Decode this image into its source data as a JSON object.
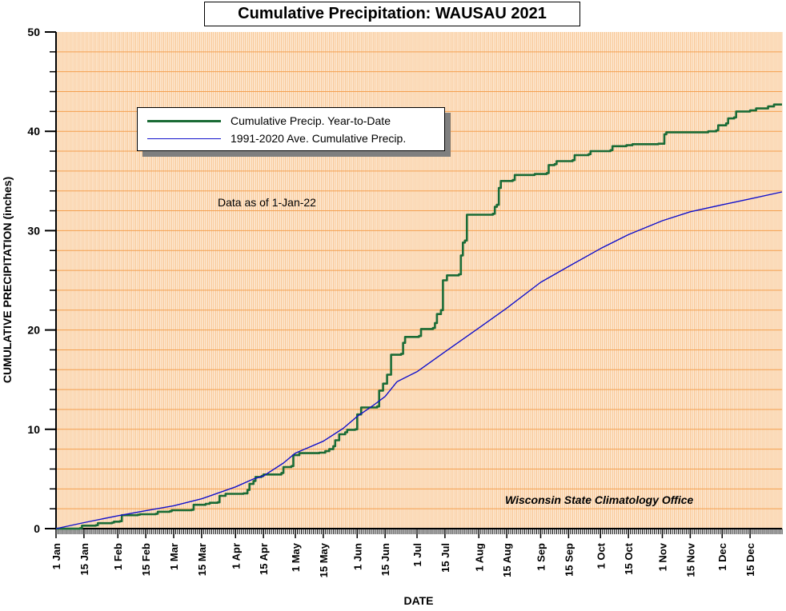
{
  "chart_data": {
    "type": "line",
    "title": "Cumulative Precipitation: WAUSAU 2021",
    "xlabel": "DATE",
    "ylabel": "CUMULATIVE PRECIPITATION (inches)",
    "ylim": [
      0,
      50
    ],
    "xlim_days": [
      1,
      365
    ],
    "y_ticks": [
      0,
      10,
      20,
      30,
      40,
      50
    ],
    "y_minor_step": 2,
    "grid": true,
    "x_ticks": [
      {
        "label": "1 Jan",
        "day": 1
      },
      {
        "label": "15 Jan",
        "day": 15
      },
      {
        "label": "1 Feb",
        "day": 32
      },
      {
        "label": "15 Feb",
        "day": 46
      },
      {
        "label": "1 Mar",
        "day": 60
      },
      {
        "label": "15 Mar",
        "day": 74
      },
      {
        "label": "1 Apr",
        "day": 91
      },
      {
        "label": "15 Apr",
        "day": 105
      },
      {
        "label": "1 May",
        "day": 121
      },
      {
        "label": "15 May",
        "day": 135
      },
      {
        "label": "1 Jun",
        "day": 152
      },
      {
        "label": "15 Jun",
        "day": 166
      },
      {
        "label": "1 Jul",
        "day": 182
      },
      {
        "label": "15 Jul",
        "day": 196
      },
      {
        "label": "1 Aug",
        "day": 213
      },
      {
        "label": "15 Aug",
        "day": 227
      },
      {
        "label": "1 Sep",
        "day": 244
      },
      {
        "label": "15 Sep",
        "day": 258
      },
      {
        "label": "1 Oct",
        "day": 274
      },
      {
        "label": "15 Oct",
        "day": 288
      },
      {
        "label": "1 Nov",
        "day": 305
      },
      {
        "label": "15 Nov",
        "day": 319
      },
      {
        "label": "1 Dec",
        "day": 335
      },
      {
        "label": "15 Dec",
        "day": 349
      }
    ],
    "legend_position": "upper-left",
    "series": [
      {
        "name": "Cumulative Precip. Year-to-Date",
        "color": "#1a6b35",
        "style": "step",
        "points": [
          [
            1,
            0
          ],
          [
            13,
            0.05
          ],
          [
            14,
            0.3
          ],
          [
            21,
            0.35
          ],
          [
            22,
            0.55
          ],
          [
            29,
            0.6
          ],
          [
            30,
            0.7
          ],
          [
            33,
            0.75
          ],
          [
            34,
            1.35
          ],
          [
            42,
            1.4
          ],
          [
            43,
            1.45
          ],
          [
            51,
            1.5
          ],
          [
            52,
            1.7
          ],
          [
            58,
            1.75
          ],
          [
            59,
            1.85
          ],
          [
            69,
            1.9
          ],
          [
            70,
            2.4
          ],
          [
            76,
            2.5
          ],
          [
            78,
            2.6
          ],
          [
            82,
            2.65
          ],
          [
            83,
            3.3
          ],
          [
            86,
            3.5
          ],
          [
            95,
            3.55
          ],
          [
            97,
            3.9
          ],
          [
            98,
            4.5
          ],
          [
            100,
            4.8
          ],
          [
            101,
            5.2
          ],
          [
            104,
            5.3
          ],
          [
            105,
            5.45
          ],
          [
            114,
            5.6
          ],
          [
            115,
            6.2
          ],
          [
            119,
            6.3
          ],
          [
            120,
            7.4
          ],
          [
            123,
            7.6
          ],
          [
            133,
            7.65
          ],
          [
            136,
            7.8
          ],
          [
            138,
            8.0
          ],
          [
            140,
            8.3
          ],
          [
            141,
            8.9
          ],
          [
            143,
            9.5
          ],
          [
            146,
            9.7
          ],
          [
            147,
            9.95
          ],
          [
            151,
            10.0
          ],
          [
            152,
            11.5
          ],
          [
            154,
            12.2
          ],
          [
            162,
            12.3
          ],
          [
            163,
            13.9
          ],
          [
            165,
            14.6
          ],
          [
            167,
            15.5
          ],
          [
            169,
            17.5
          ],
          [
            174,
            17.6
          ],
          [
            175,
            18.7
          ],
          [
            176,
            19.3
          ],
          [
            183,
            19.4
          ],
          [
            184,
            20.1
          ],
          [
            190,
            20.2
          ],
          [
            191,
            20.7
          ],
          [
            192,
            21.6
          ],
          [
            194,
            22.0
          ],
          [
            195,
            25.0
          ],
          [
            197,
            25.5
          ],
          [
            203,
            25.6
          ],
          [
            204,
            27.5
          ],
          [
            205,
            28.8
          ],
          [
            206,
            29.0
          ],
          [
            207,
            31.6
          ],
          [
            220,
            31.7
          ],
          [
            221,
            32.4
          ],
          [
            222,
            32.6
          ],
          [
            223,
            34.3
          ],
          [
            224,
            35.0
          ],
          [
            230,
            35.1
          ],
          [
            231,
            35.6
          ],
          [
            241,
            35.7
          ],
          [
            247,
            35.8
          ],
          [
            248,
            36.6
          ],
          [
            251,
            36.7
          ],
          [
            252,
            37.0
          ],
          [
            260,
            37.1
          ],
          [
            261,
            37.6
          ],
          [
            268,
            37.7
          ],
          [
            269,
            38.0
          ],
          [
            279,
            38.1
          ],
          [
            280,
            38.5
          ],
          [
            287,
            38.6
          ],
          [
            290,
            38.7
          ],
          [
            303,
            38.75
          ],
          [
            306,
            39.7
          ],
          [
            307,
            39.9
          ],
          [
            328,
            40.0
          ],
          [
            332,
            40.1
          ],
          [
            333,
            40.6
          ],
          [
            337,
            40.8
          ],
          [
            338,
            41.3
          ],
          [
            341,
            41.4
          ],
          [
            342,
            42.0
          ],
          [
            349,
            42.1
          ],
          [
            352,
            42.3
          ],
          [
            358,
            42.5
          ],
          [
            361,
            42.7
          ],
          [
            365,
            42.7
          ]
        ]
      },
      {
        "name": "1991-2020 Ave. Cumulative Precip.",
        "color": "#1010cc",
        "style": "line",
        "points": [
          [
            1,
            0
          ],
          [
            15,
            0.6
          ],
          [
            32,
            1.3
          ],
          [
            46,
            1.8
          ],
          [
            60,
            2.3
          ],
          [
            74,
            3.0
          ],
          [
            91,
            4.2
          ],
          [
            100,
            5.0
          ],
          [
            105,
            5.3
          ],
          [
            115,
            6.6
          ],
          [
            121,
            7.6
          ],
          [
            135,
            8.8
          ],
          [
            145,
            10.1
          ],
          [
            152,
            11.3
          ],
          [
            160,
            12.4
          ],
          [
            166,
            13.3
          ],
          [
            172,
            14.8
          ],
          [
            182,
            15.8
          ],
          [
            196,
            17.8
          ],
          [
            213,
            20.2
          ],
          [
            227,
            22.2
          ],
          [
            244,
            24.8
          ],
          [
            258,
            26.4
          ],
          [
            274,
            28.2
          ],
          [
            288,
            29.6
          ],
          [
            305,
            31.0
          ],
          [
            319,
            31.9
          ],
          [
            335,
            32.6
          ],
          [
            349,
            33.2
          ],
          [
            365,
            33.9
          ]
        ]
      }
    ],
    "annotations": [
      "Data as of 1-Jan-22",
      "Wisconsin State Climatology Office"
    ],
    "colors": {
      "plot_background": "#fde9d3",
      "grid_horizontal": "#f4a050",
      "grid_vertical": "#f6b87a"
    }
  }
}
